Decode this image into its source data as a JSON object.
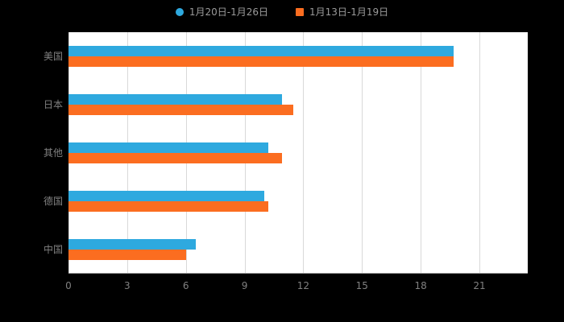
{
  "chart_data": {
    "type": "bar",
    "orientation": "horizontal",
    "title": "",
    "xlabel": "",
    "ylabel": "",
    "categories": [
      "美国",
      "日本",
      "其他",
      "德国",
      "中国"
    ],
    "series": [
      {
        "name": "1月20日-1月26日",
        "color": "#2EA9DF",
        "marker": "circle",
        "values": [
          19.7,
          10.9,
          10.2,
          10.0,
          6.5
        ]
      },
      {
        "name": "1月13日-1月19日",
        "color": "#FB6D20",
        "marker": "square",
        "values": [
          19.7,
          11.5,
          10.9,
          10.2,
          6.0
        ]
      }
    ],
    "xlim": [
      0,
      21
    ],
    "xticks": [
      0,
      3,
      6,
      9,
      12,
      15,
      18,
      21
    ],
    "grid": true,
    "legend_position": "top"
  },
  "colors": {
    "page_background": "#000000",
    "plot_background": "#ffffff",
    "gridline": "#d9d9d9",
    "axis_line": "#999999",
    "category_text": "#808080",
    "tick_text": "#808080",
    "legend_text": "#9a9a9a"
  }
}
